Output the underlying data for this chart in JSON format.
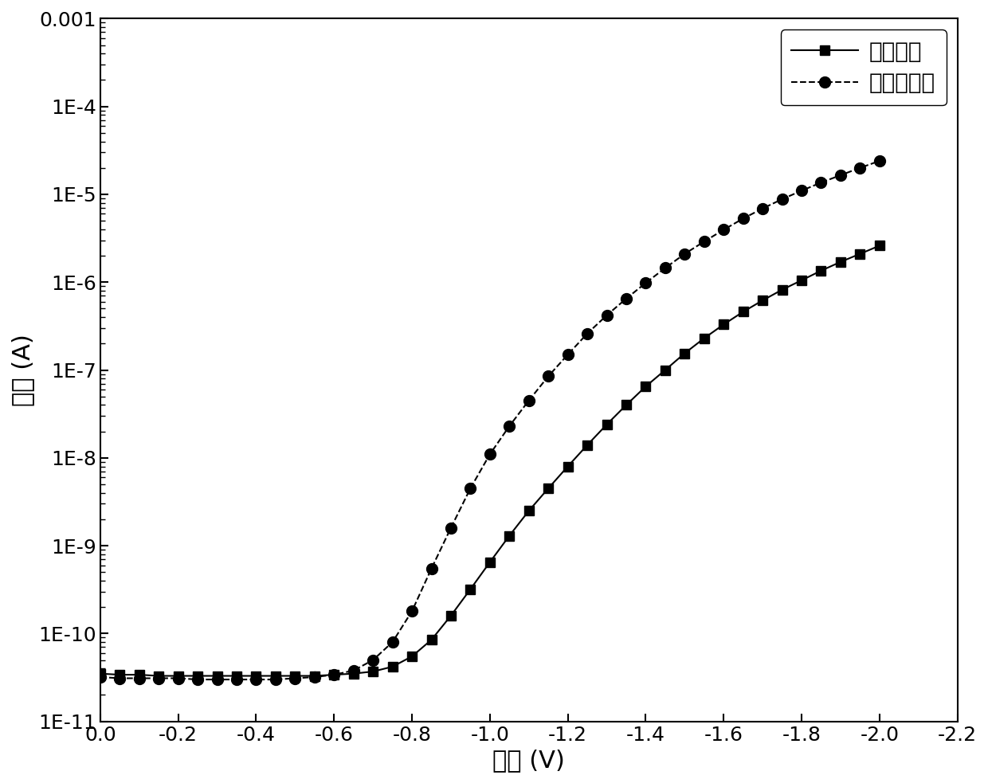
{
  "xlabel": "电压 (V)",
  "ylabel": "电流 (A)",
  "xlim": [
    0.0,
    -2.2
  ],
  "ylim": [
    1e-11,
    0.001
  ],
  "xticks": [
    0.0,
    -0.2,
    -0.4,
    -0.6,
    -0.8,
    -1.0,
    -1.2,
    -1.4,
    -1.6,
    -1.8,
    -2.0,
    -2.2
  ],
  "xtick_labels": [
    "0.0",
    "-0.2",
    "-0.4",
    "-0.6",
    "-0.8",
    "-1.0",
    "-1.2",
    "-1.4",
    "-1.6",
    "-1.8",
    "-2.0",
    "-2.2"
  ],
  "ytick_vals": [
    1e-11,
    1e-10,
    1e-09,
    1e-08,
    1e-07,
    1e-06,
    1e-05,
    0.0001,
    0.001
  ],
  "ytick_labels": [
    "1E-11",
    "1E-10",
    "1E-9",
    "1E-8",
    "1E-7",
    "1E-6",
    "1E-5",
    "1E-4",
    "0.001"
  ],
  "legend_labels": [
    "传统结构",
    "倒圆锥结构"
  ],
  "line_color": "#000000",
  "background_color": "#ffffff",
  "series1_x": [
    0.0,
    -0.05,
    -0.1,
    -0.15,
    -0.2,
    -0.25,
    -0.3,
    -0.35,
    -0.4,
    -0.45,
    -0.5,
    -0.55,
    -0.6,
    -0.65,
    -0.7,
    -0.75,
    -0.8,
    -0.85,
    -0.9,
    -0.95,
    -1.0,
    -1.05,
    -1.1,
    -1.15,
    -1.2,
    -1.25,
    -1.3,
    -1.35,
    -1.4,
    -1.45,
    -1.5,
    -1.55,
    -1.6,
    -1.65,
    -1.7,
    -1.75,
    -1.8,
    -1.85,
    -1.9,
    -1.95,
    -2.0
  ],
  "series1_y": [
    3.5e-11,
    3.4e-11,
    3.4e-11,
    3.3e-11,
    3.3e-11,
    3.3e-11,
    3.3e-11,
    3.3e-11,
    3.3e-11,
    3.3e-11,
    3.3e-11,
    3.3e-11,
    3.4e-11,
    3.5e-11,
    3.7e-11,
    4.2e-11,
    5.5e-11,
    8.5e-11,
    1.6e-10,
    3.2e-10,
    6.5e-10,
    1.3e-09,
    2.5e-09,
    4.5e-09,
    8e-09,
    1.4e-08,
    2.4e-08,
    4e-08,
    6.5e-08,
    1e-07,
    1.55e-07,
    2.3e-07,
    3.3e-07,
    4.6e-07,
    6.2e-07,
    8.2e-07,
    1.05e-06,
    1.35e-06,
    1.7e-06,
    2.1e-06,
    2.6e-06
  ],
  "series2_x": [
    0.0,
    -0.05,
    -0.1,
    -0.15,
    -0.2,
    -0.25,
    -0.3,
    -0.35,
    -0.4,
    -0.45,
    -0.5,
    -0.55,
    -0.6,
    -0.65,
    -0.7,
    -0.75,
    -0.8,
    -0.85,
    -0.9,
    -0.95,
    -1.0,
    -1.05,
    -1.1,
    -1.15,
    -1.2,
    -1.25,
    -1.3,
    -1.35,
    -1.4,
    -1.45,
    -1.5,
    -1.55,
    -1.6,
    -1.65,
    -1.7,
    -1.75,
    -1.8,
    -1.85,
    -1.9,
    -1.95,
    -2.0
  ],
  "series2_y": [
    3.2e-11,
    3.1e-11,
    3.1e-11,
    3.1e-11,
    3.1e-11,
    3e-11,
    3e-11,
    3e-11,
    3e-11,
    3e-11,
    3.1e-11,
    3.2e-11,
    3.4e-11,
    3.8e-11,
    5e-11,
    8e-11,
    1.8e-10,
    5.5e-10,
    1.6e-09,
    4.5e-09,
    1.1e-08,
    2.3e-08,
    4.5e-08,
    8.5e-08,
    1.5e-07,
    2.6e-07,
    4.2e-07,
    6.5e-07,
    9.8e-07,
    1.45e-06,
    2.1e-06,
    2.9e-06,
    3.95e-06,
    5.3e-06,
    6.9e-06,
    8.8e-06,
    1.1e-05,
    1.36e-05,
    1.65e-05,
    2e-05,
    2.4e-05
  ],
  "font_size_labels": 22,
  "font_size_ticks": 18,
  "font_size_legend": 20,
  "line_width": 1.5,
  "marker_size": 8
}
